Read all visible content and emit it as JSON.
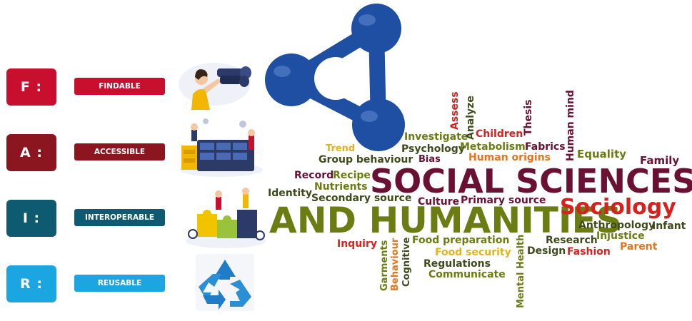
{
  "fair": [
    {
      "letter": "F :",
      "label": "FINDABLE",
      "color": "#c8102e"
    },
    {
      "letter": "A :",
      "label": "ACCESSIBLE",
      "color": "#8c1620"
    },
    {
      "letter": "I :",
      "label": "INTEROPERABLE",
      "color": "#0e5a70"
    },
    {
      "letter": "R :",
      "label": "REUSABLE",
      "color": "#1ba6e2"
    }
  ],
  "word_cloud": {
    "headline_1": "SOCIAL SCIENCES",
    "headline_2": "AND HUMANITIES",
    "words": [
      "Trend",
      "Investigate",
      "Analyze",
      "Assess",
      "Children",
      "Thesis",
      "Human mind",
      "Group behaviour",
      "Psychology",
      "Bias",
      "Metabolism",
      "Fabrics",
      "Human origins",
      "Equality",
      "Family",
      "Record",
      "Recipe",
      "Nutrients",
      "Identity",
      "Secondary source",
      "Culture",
      "Primary source",
      "Sociology",
      "Anthropology",
      "Infant",
      "Injustice",
      "Research",
      "Parent",
      "Inquiry",
      "Food preparation",
      "Fashion",
      "Design",
      "Food security",
      "Regulations",
      "Communicate",
      "Garments",
      "Behaviour",
      "Cognitive",
      "Mental Health"
    ]
  },
  "colors": {
    "share_logo": "#1e4fa3",
    "olive": "#6b7c12",
    "maroon": "#6a1033",
    "orange": "#e8731c",
    "red": "#d6211f",
    "yellow": "#e2b41a",
    "dark_olive": "#3d4a1a"
  }
}
